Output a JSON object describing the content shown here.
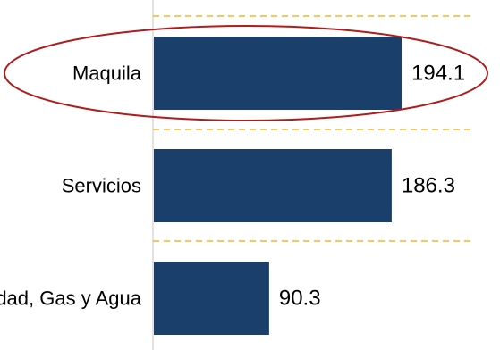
{
  "chart_data": {
    "type": "bar",
    "orientation": "horizontal",
    "categories": [
      "Maquila",
      "Servicios",
      "Electricidad, Gas y Agua"
    ],
    "values": [
      194.1,
      186.3,
      90.3
    ],
    "value_labels": [
      "194.1",
      "186.3",
      "90.3"
    ],
    "xlim": [
      0,
      194.1
    ],
    "grid": false,
    "separators": "dashed",
    "highlighted_category": "Maquila",
    "colors": {
      "bar": "#1b3f6b",
      "separator": "#f5b323",
      "highlight": "#b01c1c",
      "axis": "#d9d9d9"
    }
  }
}
